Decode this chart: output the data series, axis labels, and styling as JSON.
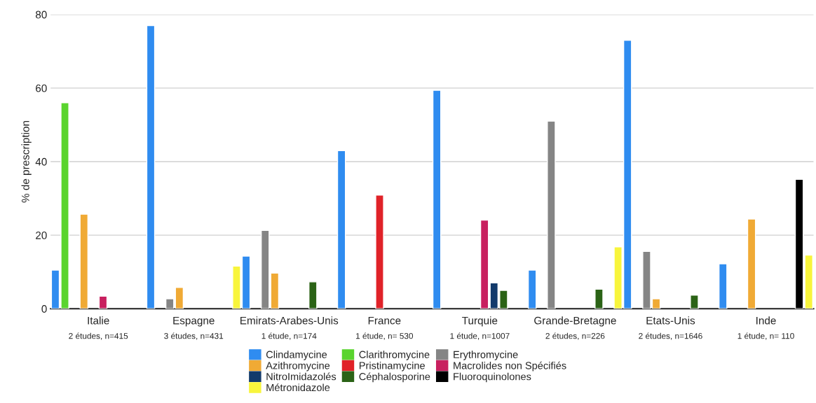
{
  "chart_data": {
    "type": "bar",
    "ylabel": "% de prescription",
    "categories": [
      "Italie",
      "Espagne",
      "Emirats-Arabes-Unis",
      "France",
      "Turquie",
      "Grande-Bretagne",
      "Etats-Unis",
      "Inde"
    ],
    "annotations": [
      "2 études, n=415",
      "3 études, n=431",
      "1 étude, n=174",
      "1 étude, n= 530",
      "1 étude, n=1007",
      "2 études, n=226",
      "2 études, n=1646",
      "1 étude, n= 110"
    ],
    "series": [
      {
        "name": "Clindamycine",
        "color": "#2f8cf0",
        "values": [
          10.5,
          77,
          14.3,
          43,
          59.4,
          10.5,
          73,
          12.2
        ]
      },
      {
        "name": "Clarithromycine",
        "color": "#5ad42e",
        "values": [
          56,
          null,
          null,
          null,
          null,
          null,
          null,
          null
        ]
      },
      {
        "name": "Erythromycine",
        "color": "#858585",
        "values": [
          null,
          2.7,
          21.3,
          null,
          null,
          51,
          15.6,
          null
        ]
      },
      {
        "name": "Azithromycine",
        "color": "#f0aa35",
        "values": [
          25.7,
          5.8,
          9.7,
          null,
          null,
          null,
          2.7,
          24.4
        ]
      },
      {
        "name": "Pristinamycine",
        "color": "#e02228",
        "values": [
          null,
          null,
          null,
          30.9,
          null,
          null,
          null,
          null
        ]
      },
      {
        "name": "Macrolides non Spécifiés",
        "color": "#c8205f",
        "values": [
          3.4,
          null,
          null,
          null,
          24.1,
          null,
          null,
          null
        ]
      },
      {
        "name": "NitroImidazolés",
        "color": "#123a6b",
        "values": [
          null,
          null,
          null,
          null,
          7,
          null,
          null,
          null
        ]
      },
      {
        "name": "Céphalosporine",
        "color": "#2b6316",
        "values": [
          null,
          null,
          7.3,
          null,
          5,
          5.3,
          3.7,
          null
        ]
      },
      {
        "name": "Fluoroquinolones",
        "color": "#000000",
        "values": [
          null,
          null,
          null,
          null,
          null,
          null,
          null,
          35.2
        ]
      },
      {
        "name": "Métronidazole",
        "color": "#f8f53c",
        "values": [
          null,
          11.6,
          null,
          null,
          null,
          16.8,
          null,
          14.6
        ]
      }
    ],
    "ylim": [
      0,
      80
    ],
    "yticks": [
      0,
      20,
      40,
      60,
      80
    ],
    "grid": "y",
    "legend": "bottom"
  }
}
